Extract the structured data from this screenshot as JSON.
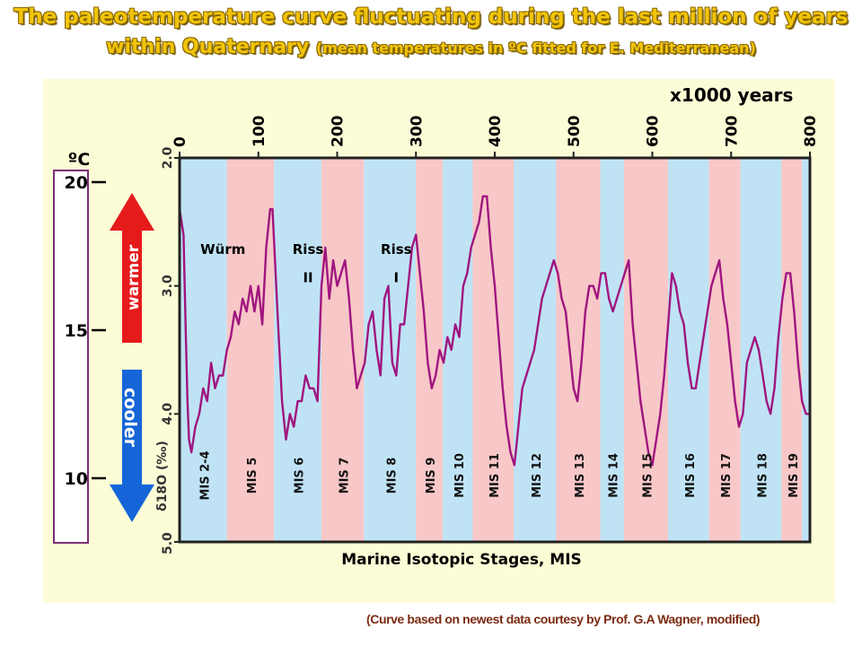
{
  "header": {
    "title_line1": "The paleotemperature curve fluctuating during the last million of years",
    "title_line2_main": "within Quaternary",
    "title_line2_paren": "(mean temperatures in ºC fitted for E. Mediterranean)"
  },
  "unit_top": "x1000 years",
  "credit": "(Curve based on newest data courtesy by Prof. G.A Wagner, modified)",
  "colors": {
    "title": "#f2c40c",
    "panel_background": "#fcfcd7",
    "cool_band": "#bfe3f5",
    "warm_band": "#f8c7c7",
    "curve": "#a0157f",
    "warmer_arrow": "#e51b1b",
    "cooler_arrow": "#1565d8",
    "scale_border": "#7a2f78"
  },
  "temperature_scale": {
    "unit_label": "ºC",
    "ticks": [
      {
        "label": "20",
        "value": 20
      },
      {
        "label": "15",
        "value": 15
      },
      {
        "label": "10",
        "value": 10
      }
    ],
    "warmer_label": "warmer",
    "cooler_label": "cooler"
  },
  "chart_data": {
    "type": "line",
    "title": "The paleotemperature curve fluctuating during the last million of years within Quaternary",
    "xlabel": "Marine Isotopic Stages, MIS",
    "x_unit_label": "x1000 years",
    "ylabel": "δ18O (‰)",
    "xlim": [
      0,
      800
    ],
    "ylim": [
      2.0,
      5.0
    ],
    "y_inverted": true,
    "x_ticks": [
      "0",
      "100",
      "200",
      "300",
      "400",
      "500",
      "600",
      "700",
      "800"
    ],
    "y_ticks": [
      "2.0",
      "3.0",
      "4.0",
      "5.0"
    ],
    "series": [
      {
        "x": [
          0,
          5,
          8,
          10,
          12,
          15,
          20,
          25,
          30,
          35,
          40,
          45,
          50,
          55,
          60,
          65,
          70,
          75,
          80,
          85,
          90,
          95,
          100,
          105,
          110,
          115,
          118,
          125,
          130,
          135,
          140,
          145,
          150,
          155,
          160,
          165,
          170,
          175,
          180,
          185,
          190,
          195,
          200,
          205,
          210,
          215,
          220,
          225,
          230,
          235,
          240,
          245,
          250,
          255,
          260,
          265,
          270,
          275,
          280,
          285,
          290,
          295,
          300,
          305,
          310,
          315,
          320,
          325,
          330,
          335,
          340,
          345,
          350,
          355,
          360,
          365,
          370,
          375,
          380,
          385,
          390,
          395,
          400,
          405,
          410,
          415,
          420,
          425,
          430,
          435,
          440,
          445,
          450,
          455,
          460,
          465,
          470,
          475,
          480,
          485,
          490,
          495,
          500,
          505,
          510,
          515,
          520,
          525,
          530,
          535,
          540,
          545,
          550,
          555,
          560,
          565,
          570,
          575,
          580,
          585,
          590,
          595,
          600,
          605,
          610,
          615,
          620,
          625,
          630,
          635,
          640,
          645,
          650,
          655,
          660,
          665,
          670,
          675,
          680,
          685,
          690,
          695,
          700,
          705,
          710,
          715,
          720,
          725,
          730,
          735,
          740,
          745,
          750,
          755,
          760,
          765,
          770,
          775,
          780,
          785,
          790,
          795,
          800
        ],
        "values": [
          2.4,
          2.6,
          3.4,
          3.9,
          4.2,
          4.3,
          4.1,
          4.0,
          3.8,
          3.9,
          3.6,
          3.8,
          3.7,
          3.7,
          3.5,
          3.4,
          3.2,
          3.3,
          3.1,
          3.2,
          3.0,
          3.2,
          3.0,
          3.3,
          2.7,
          2.4,
          2.4,
          3.3,
          3.9,
          4.2,
          4.0,
          4.1,
          3.9,
          3.9,
          3.7,
          3.8,
          3.8,
          3.9,
          3.0,
          2.7,
          3.1,
          2.8,
          3.0,
          2.9,
          2.8,
          3.1,
          3.5,
          3.8,
          3.7,
          3.6,
          3.3,
          3.2,
          3.5,
          3.7,
          3.1,
          3.0,
          3.6,
          3.7,
          3.3,
          3.3,
          3.0,
          2.7,
          2.6,
          2.9,
          3.2,
          3.6,
          3.8,
          3.7,
          3.5,
          3.6,
          3.4,
          3.5,
          3.3,
          3.4,
          3.0,
          2.9,
          2.7,
          2.6,
          2.5,
          2.3,
          2.3,
          2.7,
          3.0,
          3.4,
          3.8,
          4.1,
          4.3,
          4.4,
          4.1,
          3.8,
          3.7,
          3.6,
          3.5,
          3.3,
          3.1,
          3.0,
          2.9,
          2.8,
          2.9,
          3.1,
          3.2,
          3.5,
          3.8,
          3.9,
          3.6,
          3.2,
          3.0,
          3.0,
          3.1,
          2.9,
          2.9,
          3.1,
          3.2,
          3.1,
          3.0,
          2.9,
          2.8,
          3.3,
          3.6,
          3.9,
          4.1,
          4.3,
          4.4,
          4.2,
          4.0,
          3.7,
          3.3,
          2.9,
          3.0,
          3.2,
          3.3,
          3.6,
          3.8,
          3.8,
          3.6,
          3.4,
          3.2,
          3.0,
          2.9,
          2.8,
          3.1,
          3.3,
          3.6,
          3.9,
          4.1,
          4.0,
          3.6,
          3.5,
          3.4,
          3.5,
          3.7,
          3.9,
          4.0,
          3.8,
          3.4,
          3.1,
          2.9,
          2.9,
          3.2,
          3.6,
          3.9,
          4.0,
          4.0
        ]
      }
    ],
    "stages": [
      {
        "label": "MIS 2-4",
        "from": 0,
        "to": 60,
        "phase": "cool"
      },
      {
        "label": "MIS 5",
        "from": 60,
        "to": 120,
        "phase": "warm"
      },
      {
        "label": "MIS 6",
        "from": 120,
        "to": 180,
        "phase": "cool"
      },
      {
        "label": "MIS 7",
        "from": 180,
        "to": 234,
        "phase": "warm"
      },
      {
        "label": "MIS 8",
        "from": 234,
        "to": 300,
        "phase": "cool"
      },
      {
        "label": "MIS 9",
        "from": 300,
        "to": 334,
        "phase": "warm"
      },
      {
        "label": "MIS 10",
        "from": 334,
        "to": 372,
        "phase": "cool"
      },
      {
        "label": "MIS 11",
        "from": 372,
        "to": 424,
        "phase": "warm"
      },
      {
        "label": "MIS 12",
        "from": 424,
        "to": 478,
        "phase": "cool"
      },
      {
        "label": "MIS 13",
        "from": 478,
        "to": 534,
        "phase": "warm"
      },
      {
        "label": "MIS 14",
        "from": 534,
        "to": 564,
        "phase": "cool"
      },
      {
        "label": "MIS 15",
        "from": 564,
        "to": 620,
        "phase": "warm"
      },
      {
        "label": "MIS 16",
        "from": 620,
        "to": 672,
        "phase": "cool"
      },
      {
        "label": "MIS 17",
        "from": 672,
        "to": 712,
        "phase": "warm"
      },
      {
        "label": "MIS 18",
        "from": 712,
        "to": 764,
        "phase": "cool"
      },
      {
        "label": "MIS 19",
        "from": 764,
        "to": 790,
        "phase": "warm"
      },
      {
        "label": "",
        "from": 790,
        "to": 800,
        "phase": "cool"
      }
    ],
    "annotations": [
      {
        "text": "Würm",
        "x": 55,
        "y": 2.75
      },
      {
        "text": "Riss",
        "x": 163,
        "y": 2.75
      },
      {
        "text": "II",
        "x": 163,
        "y": 2.97
      },
      {
        "text": "Riss",
        "x": 275,
        "y": 2.75
      },
      {
        "text": "I",
        "x": 275,
        "y": 2.97
      }
    ]
  }
}
